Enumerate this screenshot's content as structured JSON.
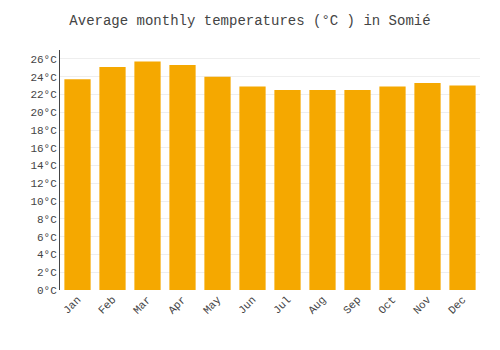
{
  "chart_data": {
    "type": "bar",
    "title": "Average monthly temperatures (°C ) in Somié",
    "categories": [
      "Jan",
      "Feb",
      "Mar",
      "Apr",
      "May",
      "Jun",
      "Jul",
      "Aug",
      "Sep",
      "Oct",
      "Nov",
      "Dec"
    ],
    "values": [
      23.7,
      25.1,
      25.7,
      25.3,
      24.0,
      22.9,
      22.5,
      22.5,
      22.5,
      22.9,
      23.3,
      23.0
    ],
    "color": "#F5A800",
    "ylim": [
      0,
      27
    ],
    "yticks": [
      {
        "value": 0,
        "label": "0°C"
      },
      {
        "value": 2,
        "label": "2°C"
      },
      {
        "value": 4,
        "label": "4°C"
      },
      {
        "value": 6,
        "label": "6°C"
      },
      {
        "value": 8,
        "label": "8°C"
      },
      {
        "value": 10,
        "label": "10°C"
      },
      {
        "value": 12,
        "label": "12°C"
      },
      {
        "value": 14,
        "label": "14°C"
      },
      {
        "value": 16,
        "label": "16°C"
      },
      {
        "value": 18,
        "label": "18°C"
      },
      {
        "value": 20,
        "label": "20°C"
      },
      {
        "value": 22,
        "label": "22°C"
      },
      {
        "value": 24,
        "label": "24°C"
      },
      {
        "value": 26,
        "label": "26°C"
      }
    ],
    "grid": true
  }
}
